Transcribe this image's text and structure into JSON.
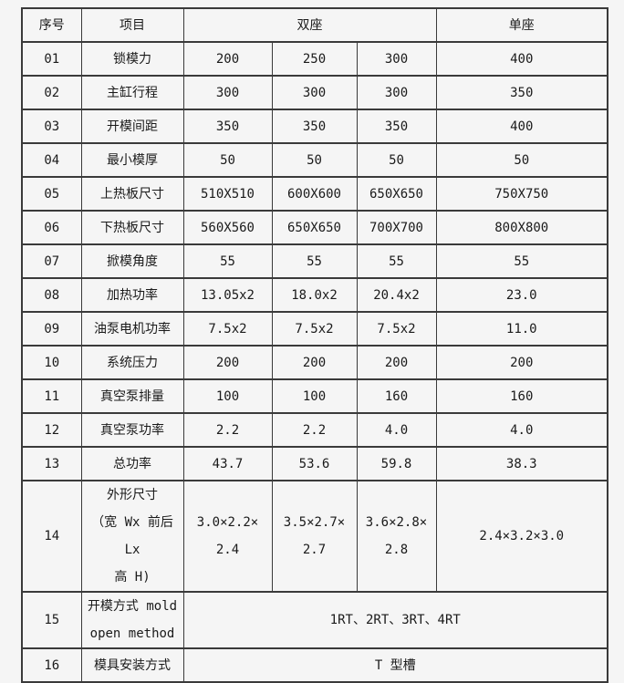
{
  "table": {
    "colors": {
      "background": "#f5f5f5",
      "border": "#3a3a3a",
      "text": "#1a1a1a"
    },
    "header": {
      "col_no": "序号",
      "col_item": "项目",
      "col_double": "双座",
      "col_single": "单座"
    },
    "rows": [
      {
        "no": "01",
        "item": "锁模力",
        "v1": "200",
        "v2": "250",
        "v3": "300",
        "single": "400"
      },
      {
        "no": "02",
        "item": "主缸行程",
        "v1": "300",
        "v2": "300",
        "v3": "300",
        "single": "350"
      },
      {
        "no": "03",
        "item": "开模间距",
        "v1": "350",
        "v2": "350",
        "v3": "350",
        "single": "400"
      },
      {
        "no": "04",
        "item": "最小模厚",
        "v1": "50",
        "v2": "50",
        "v3": "50",
        "single": "50"
      },
      {
        "no": "05",
        "item": "上热板尺寸",
        "v1": "510X510",
        "v2": "600X600",
        "v3": "650X650",
        "single": "750X750"
      },
      {
        "no": "06",
        "item": "下热板尺寸",
        "v1": "560X560",
        "v2": "650X650",
        "v3": "700X700",
        "single": "800X800"
      },
      {
        "no": "07",
        "item": "掀模角度",
        "v1": "55",
        "v2": "55",
        "v3": "55",
        "single": "55"
      },
      {
        "no": "08",
        "item": "加热功率",
        "v1": "13.05x2",
        "v2": "18.0x2",
        "v3": "20.4x2",
        "single": "23.0"
      },
      {
        "no": "09",
        "item": "油泵电机功率",
        "v1": "7.5x2",
        "v2": "7.5x2",
        "v3": "7.5x2",
        "single": "11.0"
      },
      {
        "no": "10",
        "item": "系统压力",
        "v1": "200",
        "v2": "200",
        "v3": "200",
        "single": "200"
      },
      {
        "no": "11",
        "item": "真空泵排量",
        "v1": "100",
        "v2": "100",
        "v3": "160",
        "single": "160"
      },
      {
        "no": "12",
        "item": "真空泵功率",
        "v1": "2.2",
        "v2": "2.2",
        "v3": "4.0",
        "single": "4.0"
      },
      {
        "no": "13",
        "item": "总功率",
        "v1": "43.7",
        "v2": "53.6",
        "v3": "59.8",
        "single": "38.3"
      },
      {
        "no": "14",
        "item": "外形尺寸\n（宽 Wx 前后 Lx\n高 H)",
        "v1": "3.0×2.2×\n2.4",
        "v2": "3.5×2.7×\n2.7",
        "v3": "3.6×2.8×\n2.8",
        "single": "2.4×3.2×3.0"
      },
      {
        "no": "15",
        "item": "开模方式 mold\nopen method",
        "span": "1RT、2RT、3RT、4RT"
      },
      {
        "no": "16",
        "item": "模具安装方式",
        "span": "T 型槽"
      }
    ]
  }
}
